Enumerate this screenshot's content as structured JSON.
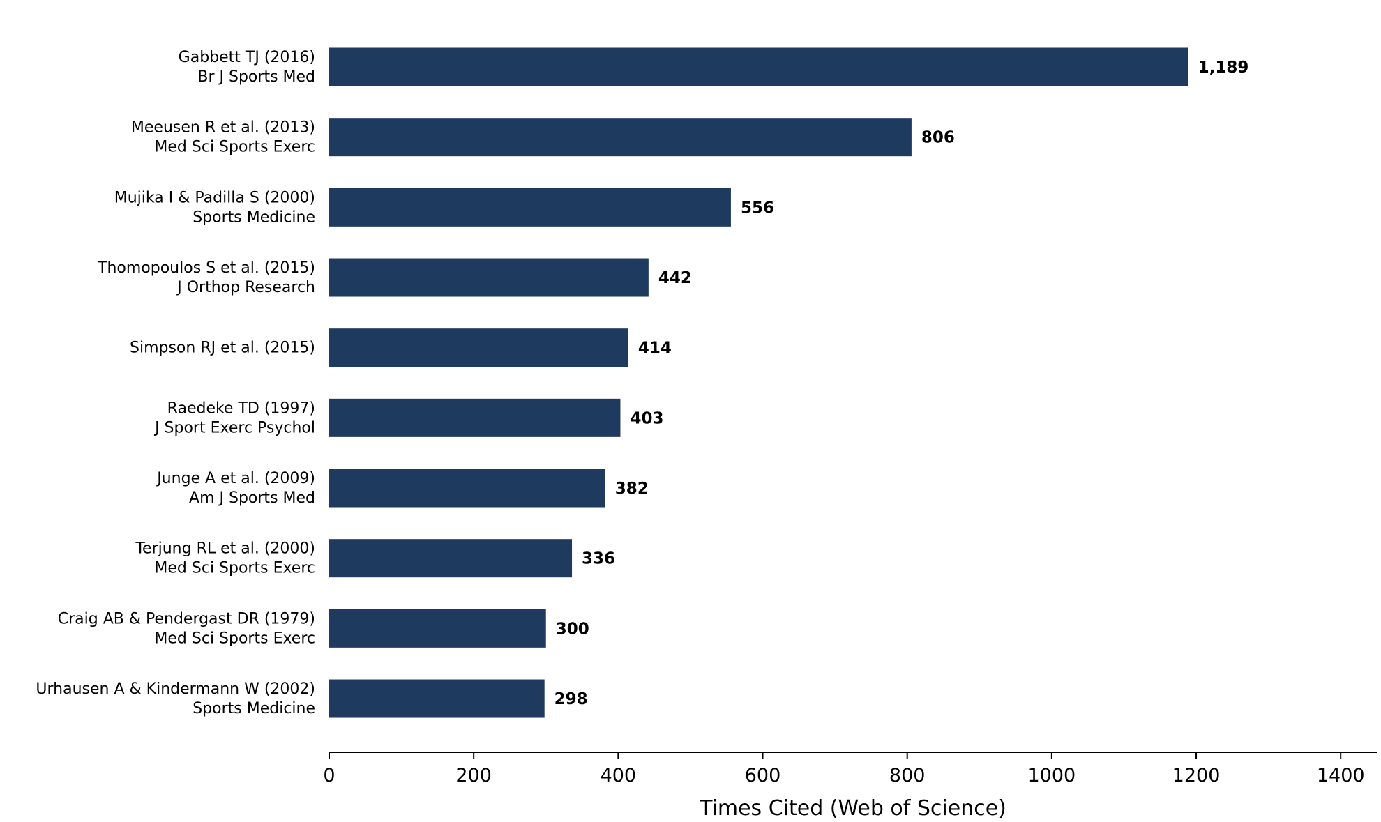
{
  "chart_data": {
    "type": "bar",
    "orientation": "horizontal",
    "categories": [
      [
        "Gabbett TJ (2016)",
        "Br J Sports Med"
      ],
      [
        "Meeusen R et al. (2013)",
        "Med Sci Sports Exerc"
      ],
      [
        "Mujika I & Padilla S (2000)",
        "Sports Medicine"
      ],
      [
        "Thomopoulos S et al. (2015)",
        "J Orthop Research"
      ],
      [
        "Simpson RJ et al. (2015)"
      ],
      [
        "Raedeke TD (1997)",
        "J Sport Exerc Psychol"
      ],
      [
        "Junge A et al. (2009)",
        "Am J Sports Med"
      ],
      [
        "Terjung RL et al. (2000)",
        "Med Sci Sports Exerc"
      ],
      [
        "Craig AB & Pendergast DR (1979)",
        "Med Sci Sports Exerc"
      ],
      [
        "Urhausen A & Kindermann W (2002)",
        "Sports Medicine"
      ]
    ],
    "values": [
      1189,
      806,
      556,
      442,
      414,
      403,
      382,
      336,
      300,
      298
    ],
    "value_labels": [
      "1,189",
      "806",
      "556",
      "442",
      "414",
      "403",
      "382",
      "336",
      "300",
      "298"
    ],
    "xlabel": "Times Cited (Web of Science)",
    "ylabel": "",
    "xlim": [
      0,
      1450
    ],
    "xticks": [
      0,
      200,
      400,
      600,
      800,
      1000,
      1200,
      1400
    ],
    "grid": false,
    "bar_color": "#1f3a5f"
  }
}
